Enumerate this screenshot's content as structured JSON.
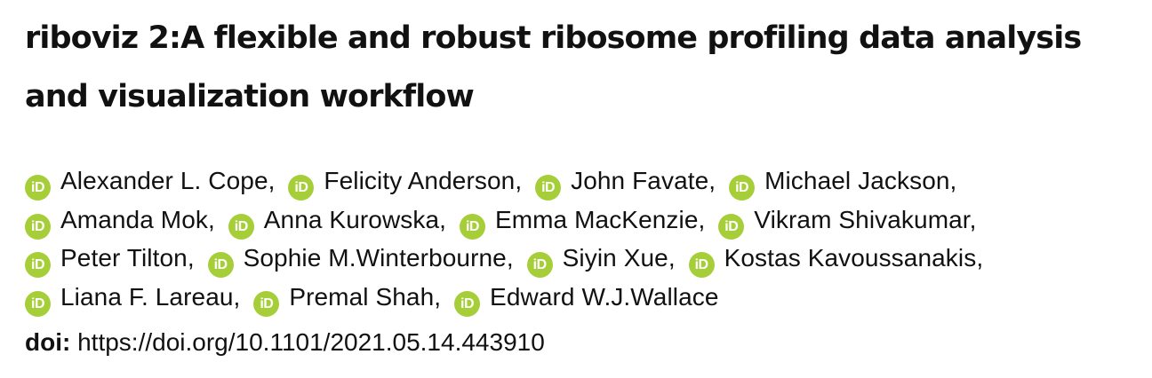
{
  "title": {
    "line1": "riboviz 2:A flexible and robust ribosome profiling data analysis",
    "line2": "and visualization workflow"
  },
  "authors": [
    [
      "Alexander L. Cope,",
      "Felicity Anderson,",
      "John Favate,",
      "Michael Jackson,"
    ],
    [
      "Amanda Mok,",
      "Anna Kurowska,",
      "Emma MacKenzie,",
      "Vikram Shivakumar,"
    ],
    [
      "Peter Tilton,",
      "Sophie M.Winterbourne,",
      "Siyin Xue,",
      "Kostas Kavoussanakis,"
    ],
    [
      "Liana F. Lareau,",
      "Premal Shah,",
      "Edward W.J.Wallace"
    ]
  ],
  "orcid_icon": {
    "name": "orcid-icon",
    "glyph": "iD",
    "color": "#a6ce39"
  },
  "doi": {
    "label": "doi:",
    "value": "https://doi.org/10.1101/2021.05.14.443910"
  }
}
